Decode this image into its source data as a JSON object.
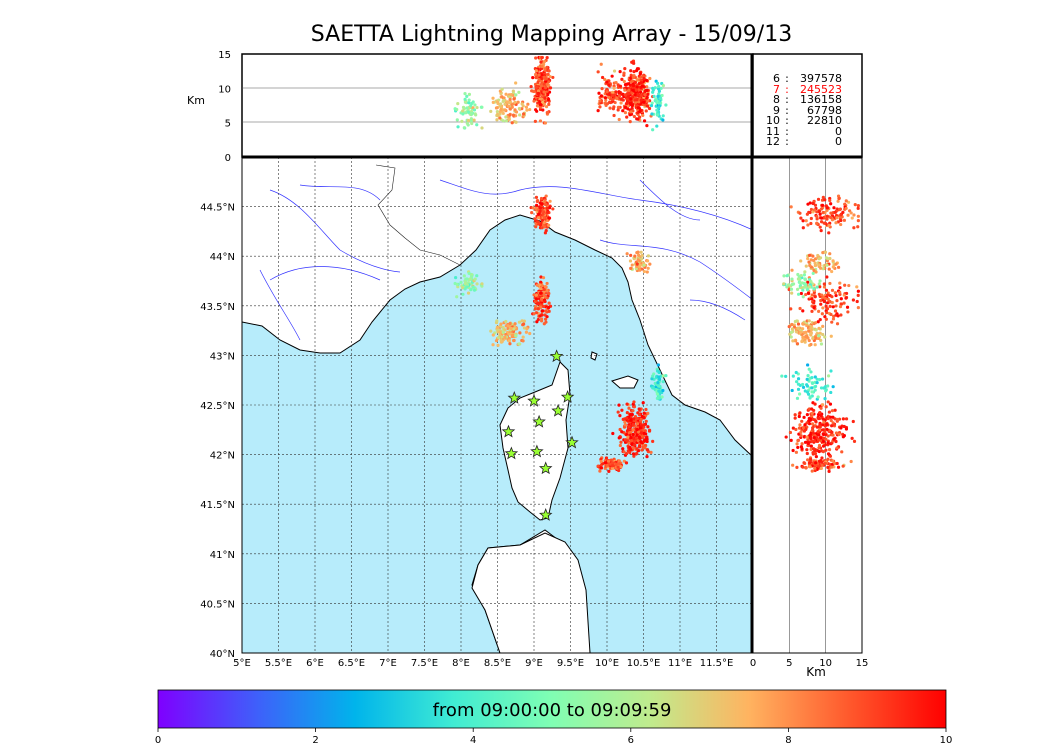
{
  "title": "SAETTA Lightning Mapping Array - 15/09/13",
  "time_range_label": "from 09:00:00 to 09:09:59",
  "station_counts": [
    {
      "stations": "6",
      "count": "397578",
      "color": "#000000"
    },
    {
      "stations": "7",
      "count": "245523",
      "color": "#ff0000"
    },
    {
      "stations": "8",
      "count": "136158",
      "color": "#000000"
    },
    {
      "stations": "9",
      "count": "67798",
      "color": "#000000"
    },
    {
      "stations": "10",
      "count": "22810",
      "color": "#000000"
    },
    {
      "stations": "11",
      "count": "0",
      "color": "#000000"
    },
    {
      "stations": "12",
      "count": "0",
      "color": "#000000"
    }
  ],
  "colors": {
    "sea": "#b7ecfb",
    "land": "#ffffff",
    "river": "#3333ff",
    "station_marker": "#99ff33"
  },
  "chart_data": {
    "type": "scatter",
    "title": "SAETTA Lightning Mapping Array - 15/09/13",
    "map": {
      "x_range": [
        5,
        12
      ],
      "y_range": [
        40,
        45
      ],
      "x_ticks": [
        "5°E",
        "5.5°E",
        "6°E",
        "6.5°E",
        "7°E",
        "7.5°E",
        "8°E",
        "8.5°E",
        "9°E",
        "9.5°E",
        "10°E",
        "10.5°E",
        "11°E",
        "11.5°E"
      ],
      "y_ticks": [
        "40°N",
        "40.5°N",
        "41°N",
        "41.5°N",
        "42°N",
        "42.5°N",
        "43°N",
        "43.5°N",
        "44°N",
        "44.5°N"
      ],
      "grid": true
    },
    "top_panel": {
      "ylabel": "Km",
      "y_ticks": [
        "0",
        "5",
        "10",
        "15"
      ],
      "ylim": [
        0,
        15
      ],
      "xlim": [
        5,
        12
      ]
    },
    "side_panel": {
      "xlabel": "Km",
      "x_ticks": [
        "0",
        "5",
        "10",
        "15"
      ],
      "xlim": [
        0,
        15
      ],
      "ylim": [
        40,
        45
      ]
    },
    "colorbar": {
      "ticks": [
        "0",
        "2",
        "4",
        "6",
        "8",
        "10"
      ],
      "range": [
        0,
        10
      ],
      "colors": [
        "#7f00ff",
        "#3f5ffa",
        "#00b4eb",
        "#40ecd3",
        "#80feb3",
        "#c0eb8d",
        "#ffb360",
        "#ff5a2d",
        "#ff0000"
      ]
    },
    "stations": [
      [
        9.31,
        42.99
      ],
      [
        8.73,
        42.57
      ],
      [
        9.0,
        42.54
      ],
      [
        9.46,
        42.58
      ],
      [
        9.33,
        42.44
      ],
      [
        9.07,
        42.33
      ],
      [
        8.65,
        42.23
      ],
      [
        9.52,
        42.12
      ],
      [
        8.69,
        42.01
      ],
      [
        9.04,
        42.03
      ],
      [
        9.16,
        41.86
      ],
      [
        9.16,
        41.39
      ]
    ],
    "lightning_clusters": [
      {
        "lon": 9.12,
        "lat": 44.42,
        "lon_spread": 0.12,
        "lat_spread": 0.15,
        "alt": 10.5,
        "alt_spread": 4,
        "value": 9,
        "n": 130
      },
      {
        "lon": 9.1,
        "lat": 43.55,
        "lon_spread": 0.1,
        "lat_spread": 0.22,
        "alt": 10,
        "alt_spread": 4,
        "value": 9,
        "n": 120
      },
      {
        "lon": 8.66,
        "lat": 43.23,
        "lon_spread": 0.25,
        "lat_spread": 0.14,
        "alt": 7.5,
        "alt_spread": 2.5,
        "value": 7.5,
        "n": 110
      },
      {
        "lon": 8.1,
        "lat": 43.72,
        "lon_spread": 0.18,
        "lat_spread": 0.1,
        "alt": 7,
        "alt_spread": 2.5,
        "value": 5.5,
        "n": 60
      },
      {
        "lon": 10.45,
        "lat": 43.94,
        "lon_spread": 0.14,
        "lat_spread": 0.1,
        "alt": 9,
        "alt_spread": 3,
        "value": 7.5,
        "n": 60
      },
      {
        "lon": 10.38,
        "lat": 42.25,
        "lon_spread": 0.22,
        "lat_spread": 0.25,
        "alt": 9,
        "alt_spread": 3.5,
        "value": 9.5,
        "n": 260
      },
      {
        "lon": 10.05,
        "lat": 41.9,
        "lon_spread": 0.15,
        "lat_spread": 0.06,
        "alt": 9,
        "alt_spread": 3,
        "value": 9,
        "n": 90
      },
      {
        "lon": 10.7,
        "lat": 42.7,
        "lon_spread": 0.08,
        "lat_spread": 0.15,
        "alt": 8,
        "alt_spread": 3,
        "value": 4,
        "n": 60
      }
    ]
  }
}
